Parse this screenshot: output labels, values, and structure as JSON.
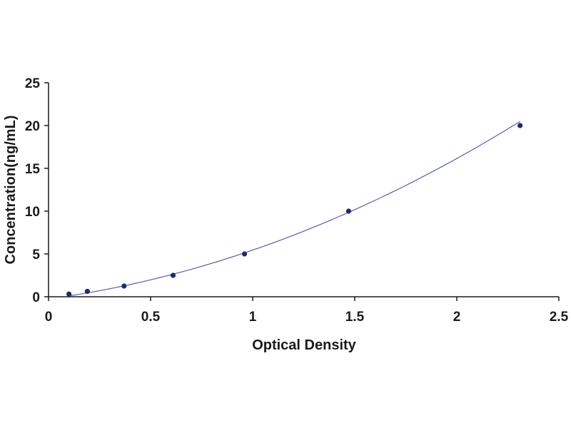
{
  "chart_data": {
    "type": "scatter",
    "title": "",
    "xlabel": "Optical Density",
    "ylabel": "Concentration(ng/mL)",
    "xlim": [
      0,
      2.5
    ],
    "ylim": [
      0,
      25
    ],
    "xticks": [
      0,
      0.5,
      1,
      1.5,
      2,
      2.5
    ],
    "xtick_labels": [
      "0",
      "0.5",
      "1",
      "1.5",
      "2",
      "2.5"
    ],
    "yticks": [
      0,
      5,
      10,
      15,
      20,
      25
    ],
    "ytick_labels": [
      "0",
      "5",
      "10",
      "15",
      "20",
      "25"
    ],
    "grid": false,
    "legend": "none",
    "series": [
      {
        "points": [
          {
            "x": 0.1,
            "y": 0.31
          },
          {
            "x": 0.19,
            "y": 0.63
          },
          {
            "x": 0.37,
            "y": 1.25
          },
          {
            "x": 0.61,
            "y": 2.5
          },
          {
            "x": 0.96,
            "y": 5
          },
          {
            "x": 1.47,
            "y": 10
          },
          {
            "x": 2.31,
            "y": 20
          }
        ],
        "marker_color": "#1f2a6b",
        "line_color": "#5a5f9e",
        "fit": "polynomial-2",
        "fit_coefficients": [
          -0.25,
          3.2,
          2.5
        ]
      }
    ]
  }
}
